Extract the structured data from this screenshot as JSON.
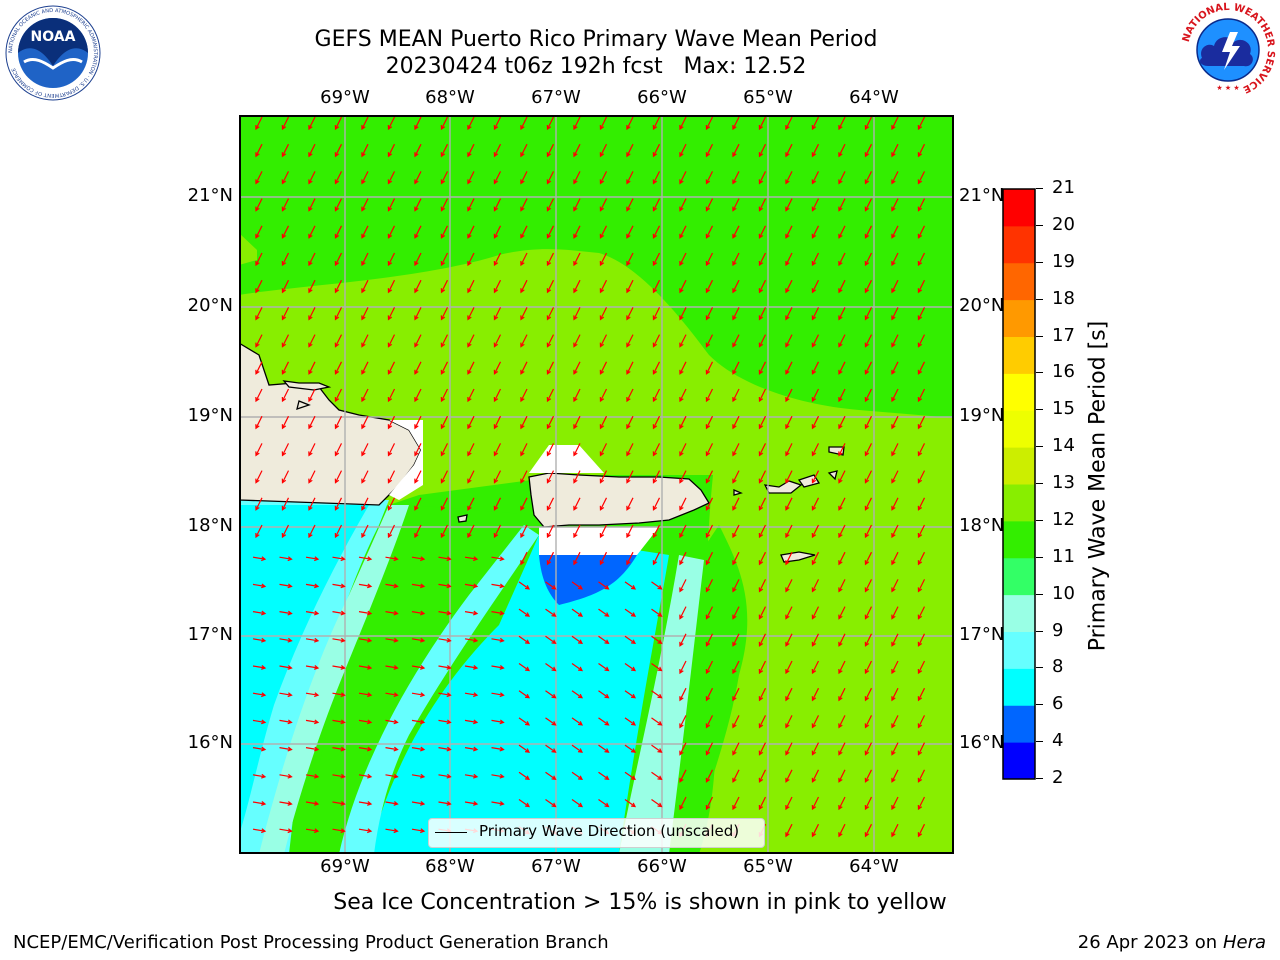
{
  "title": {
    "line1": "GEFS MEAN Puerto Rico Primary Wave Mean Period",
    "line2": "20230424 t06z 192h fcst   Max: 12.52"
  },
  "map": {
    "lon_labels": [
      "69°W",
      "68°W",
      "67°W",
      "66°W",
      "65°W",
      "64°W"
    ],
    "lat_labels": [
      "21°N",
      "20°N",
      "19°N",
      "18°N",
      "17°N",
      "16°N"
    ],
    "legend_label": "Primary Wave Direction (unscaled)",
    "arrow_color": "#ff0000",
    "land_color": "#efebdc"
  },
  "colorbar": {
    "label": "Primary Wave Mean Period [s]",
    "ticks": [
      "2",
      "4",
      "6",
      "8",
      "9",
      "10",
      "11",
      "12",
      "13",
      "14",
      "15",
      "16",
      "17",
      "18",
      "19",
      "20",
      "21"
    ],
    "colors": [
      "#0000ff",
      "#0066ff",
      "#00ffff",
      "#66ffff",
      "#99ffe5",
      "#33ff66",
      "#33ee00",
      "#88ee00",
      "#ccee00",
      "#eeff00",
      "#ffff00",
      "#ffcc00",
      "#ff9900",
      "#ff6600",
      "#ff3300",
      "#ff0000"
    ]
  },
  "footer": {
    "note": "Sea Ice Concentration > 15% is shown in pink to yellow",
    "left": "NCEP/EMC/Verification Post Processing Product Generation Branch",
    "right_prefix": "26 Apr 2023 on ",
    "right_italic": "Hera"
  },
  "logos": {
    "noaa_text": "NOAA",
    "noaa_ring_text": "NATIONAL OCEANIC AND ATMOSPHERIC ADMINISTRATION · U.S. DEPARTMENT OF COMMERCE",
    "nws_ring_text": "NATIONAL WEATHER SERVICE"
  }
}
